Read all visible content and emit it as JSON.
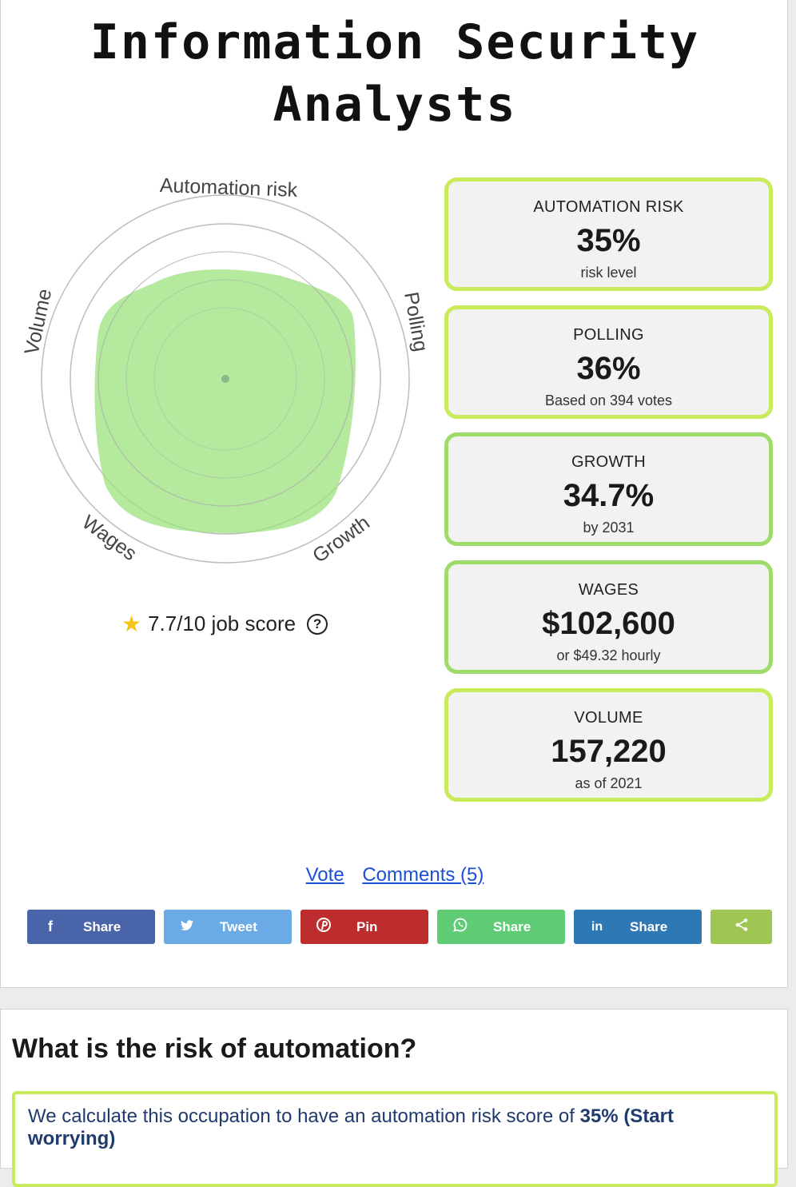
{
  "title": "Information Security Analysts",
  "radar": {
    "axes": [
      "Automation risk",
      "Polling",
      "Growth",
      "Wages",
      "Volume"
    ],
    "fill_color": "#9be27e",
    "ring_color": "#bdbdbd"
  },
  "score": {
    "text": "7.7/10 job score"
  },
  "stats": [
    {
      "label": "AUTOMATION RISK",
      "value": "35%",
      "sub": "risk level",
      "border": "#c9ea5a"
    },
    {
      "label": "POLLING",
      "value": "36%",
      "sub": "Based on 394 votes",
      "border": "#c9ea5a"
    },
    {
      "label": "GROWTH",
      "value": "34.7%",
      "sub": "by 2031",
      "border": "#9ddc6a"
    },
    {
      "label": "WAGES",
      "value": "$102,600",
      "sub": "or $49.32 hourly",
      "border": "#9ddc6a"
    },
    {
      "label": "VOLUME",
      "value": "157,220",
      "sub": "as of 2021",
      "border": "#c9ea5a"
    }
  ],
  "links": {
    "vote": "Vote",
    "comments": "Comments (5)"
  },
  "share_buttons": [
    {
      "name": "facebook",
      "icon": "f",
      "label": "Share",
      "color": "#4a64aa"
    },
    {
      "name": "twitter",
      "icon": "t",
      "label": "Tweet",
      "color": "#6aabe6"
    },
    {
      "name": "pinterest",
      "icon": "p",
      "label": "Pin",
      "color": "#bd2d2d"
    },
    {
      "name": "whatsapp",
      "icon": "w",
      "label": "Share",
      "color": "#5fcb74"
    },
    {
      "name": "linkedin",
      "icon": "in",
      "label": "Share",
      "color": "#2f78b6"
    },
    {
      "name": "share",
      "icon": "share",
      "label": "",
      "color": "#9fc553"
    }
  ],
  "risk_section": {
    "heading": "What is the risk of automation?",
    "text": "We calculate this occupation to have an automation risk score of ",
    "score": "35% (Start worrying)"
  }
}
